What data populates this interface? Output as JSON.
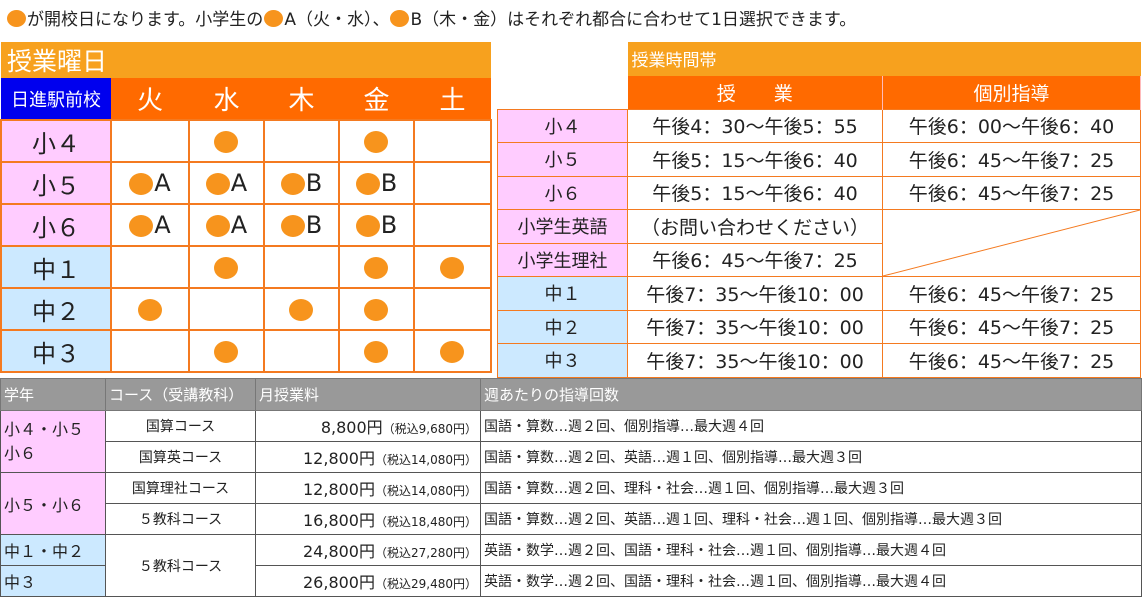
{
  "note": {
    "prefix": "が開校日になります。小学生の",
    "a": "A（火・水）、",
    "b": "B（木・金）はそれぞれ都合に合わせて1日選択できます。"
  },
  "days_table": {
    "title": "授業曜日",
    "school": "日進駅前校",
    "days": [
      "火",
      "水",
      "木",
      "金",
      "土"
    ],
    "rows": [
      {
        "grade": "小４",
        "cells": [
          null,
          "",
          "",
          null,
          "",
          null,
          "",
          null,
          null,
          null
        ]
      },
      {
        "grade": "小５"
      },
      {
        "grade": "小６"
      },
      {
        "grade": "中１"
      },
      {
        "grade": "中２"
      },
      {
        "grade": "中３"
      }
    ],
    "marks": [
      [
        null,
        "",
        null,
        "",
        null
      ],
      [
        "A",
        "A",
        "B",
        "B",
        null
      ],
      [
        "A",
        "A",
        "B",
        "B",
        null
      ],
      [
        null,
        "",
        null,
        "",
        ""
      ],
      [
        "",
        null,
        "",
        "",
        null
      ],
      [
        null,
        "",
        null,
        "",
        ""
      ]
    ],
    "colors": {
      "title": "#f7a11e",
      "header": "#ff6a00",
      "school": "#0000ee",
      "dot": "#f7941d",
      "elementary": "#ffccff",
      "junior": "#cce9ff"
    }
  },
  "times_table": {
    "title": "授業時間帯",
    "headers": [
      "授　　業",
      "個別指導"
    ],
    "rows": [
      {
        "grade": "小４",
        "class": "午後4：30〜午後5：55",
        "individual": "午後6：00〜午後6：40"
      },
      {
        "grade": "小５",
        "class": "午後5：15〜午後6：40",
        "individual": "午後6：45〜午後7：25"
      },
      {
        "grade": "小６",
        "class": "午後5：15〜午後6：40",
        "individual": "午後6：45〜午後7：25"
      },
      {
        "grade": "小学生英語",
        "class": "（お問い合わせください）"
      },
      {
        "grade": "小学生理社",
        "class": "午後6：45〜午後7：25"
      },
      {
        "grade": "中１",
        "class": "午後7：35〜午後10：00",
        "individual": "午後6：45〜午後7：25"
      },
      {
        "grade": "中２",
        "class": "午後7：35〜午後10：00",
        "individual": "午後6：45〜午後7：25"
      },
      {
        "grade": "中３",
        "class": "午後7：35〜午後10：00",
        "individual": "午後6：45〜午後7：25"
      }
    ]
  },
  "fees_table": {
    "headers": [
      "学年",
      "コース（受講教科）",
      "月授業料",
      "週あたりの指導回数"
    ],
    "grades": [
      "小４・小５\n小６",
      "小５・小６",
      "中１・中２",
      "中３"
    ],
    "rows": [
      {
        "course": "国算コース",
        "fee": "8,800円",
        "tax": "（税込9,680円）",
        "lessons": "国語・算数…週２回、個別指導…最大週４回"
      },
      {
        "course": "国算英コース",
        "fee": "12,800円",
        "tax": "（税込14,080円）",
        "lessons": "国語・算数…週２回、英語…週１回、個別指導…最大週３回"
      },
      {
        "course": "国算理社コース",
        "fee": "12,800円",
        "tax": "（税込14,080円）",
        "lessons": "国語・算数…週２回、理科・社会…週１回、個別指導…最大週３回"
      },
      {
        "course": "５教科コース",
        "fee": "16,800円",
        "tax": "（税込18,480円）",
        "lessons": "国語・算数…週２回、英語…週１回、理科・社会…週１回、個別指導…最大週３回"
      },
      {
        "course": "５教科コース",
        "fee": "24,800円",
        "tax": "（税込27,280円）",
        "lessons": "英語・数学…週２回、国語・理科・社会…週１回、個別指導…最大週４回"
      },
      {
        "fee": "26,800円",
        "tax": "（税込29,480円）",
        "lessons": "英語・数学…週２回、国語・理科・社会…週１回、個別指導…最大週４回"
      }
    ],
    "header_color": "#999999"
  }
}
